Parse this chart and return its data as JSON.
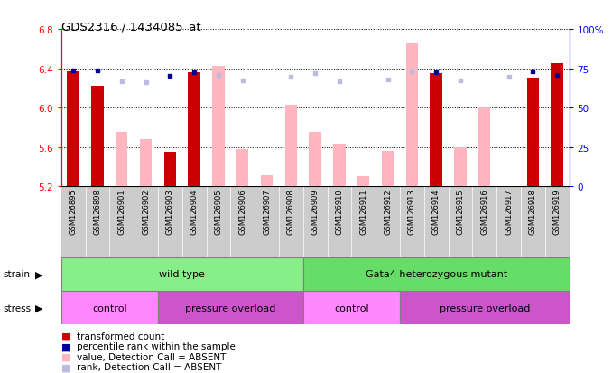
{
  "title": "GDS2316 / 1434085_at",
  "samples": [
    "GSM126895",
    "GSM126898",
    "GSM126901",
    "GSM126902",
    "GSM126903",
    "GSM126904",
    "GSM126905",
    "GSM126906",
    "GSM126907",
    "GSM126908",
    "GSM126909",
    "GSM126910",
    "GSM126911",
    "GSM126912",
    "GSM126913",
    "GSM126914",
    "GSM126915",
    "GSM126916",
    "GSM126917",
    "GSM126918",
    "GSM126919"
  ],
  "red_values": [
    6.37,
    6.22,
    null,
    null,
    5.55,
    6.36,
    6.42,
    null,
    null,
    null,
    null,
    null,
    null,
    null,
    null,
    6.35,
    null,
    null,
    null,
    6.3,
    6.45
  ],
  "pink_values": [
    null,
    null,
    5.75,
    5.68,
    null,
    null,
    6.42,
    5.58,
    5.31,
    6.03,
    5.75,
    5.63,
    5.3,
    5.56,
    6.65,
    null,
    5.6,
    6.0,
    null,
    null,
    null
  ],
  "blue_values": [
    6.38,
    6.38,
    null,
    null,
    6.32,
    6.36,
    null,
    null,
    null,
    null,
    null,
    null,
    null,
    null,
    null,
    6.36,
    null,
    null,
    null,
    6.37,
    6.33
  ],
  "lightblue_values": [
    null,
    null,
    6.27,
    6.26,
    null,
    null,
    6.33,
    6.28,
    null,
    6.31,
    6.35,
    6.27,
    null,
    6.29,
    6.37,
    null,
    6.28,
    null,
    6.31,
    null,
    null
  ],
  "ylim": [
    5.2,
    6.8
  ],
  "y_ticks": [
    5.2,
    5.6,
    6.0,
    6.4,
    6.8
  ],
  "right_ticks": [
    0,
    25,
    50,
    75,
    100
  ],
  "bar_width": 0.5,
  "red_color": "#CC0000",
  "pink_color": "#FFB6C1",
  "blue_color": "#000099",
  "lightblue_color": "#BBBBDD",
  "strain_groups": [
    {
      "label": "wild type",
      "xstart": 0,
      "xend": 10,
      "color": "#88EE88"
    },
    {
      "label": "Gata4 heterozygous mutant",
      "xstart": 10,
      "xend": 21,
      "color": "#66DD66"
    }
  ],
  "stress_groups": [
    {
      "label": "control",
      "xstart": 0,
      "xend": 4,
      "color": "#FF88FF"
    },
    {
      "label": "pressure overload",
      "xstart": 4,
      "xend": 10,
      "color": "#CC55CC"
    },
    {
      "label": "control",
      "xstart": 10,
      "xend": 14,
      "color": "#FF88FF"
    },
    {
      "label": "pressure overload",
      "xstart": 14,
      "xend": 21,
      "color": "#CC55CC"
    }
  ]
}
